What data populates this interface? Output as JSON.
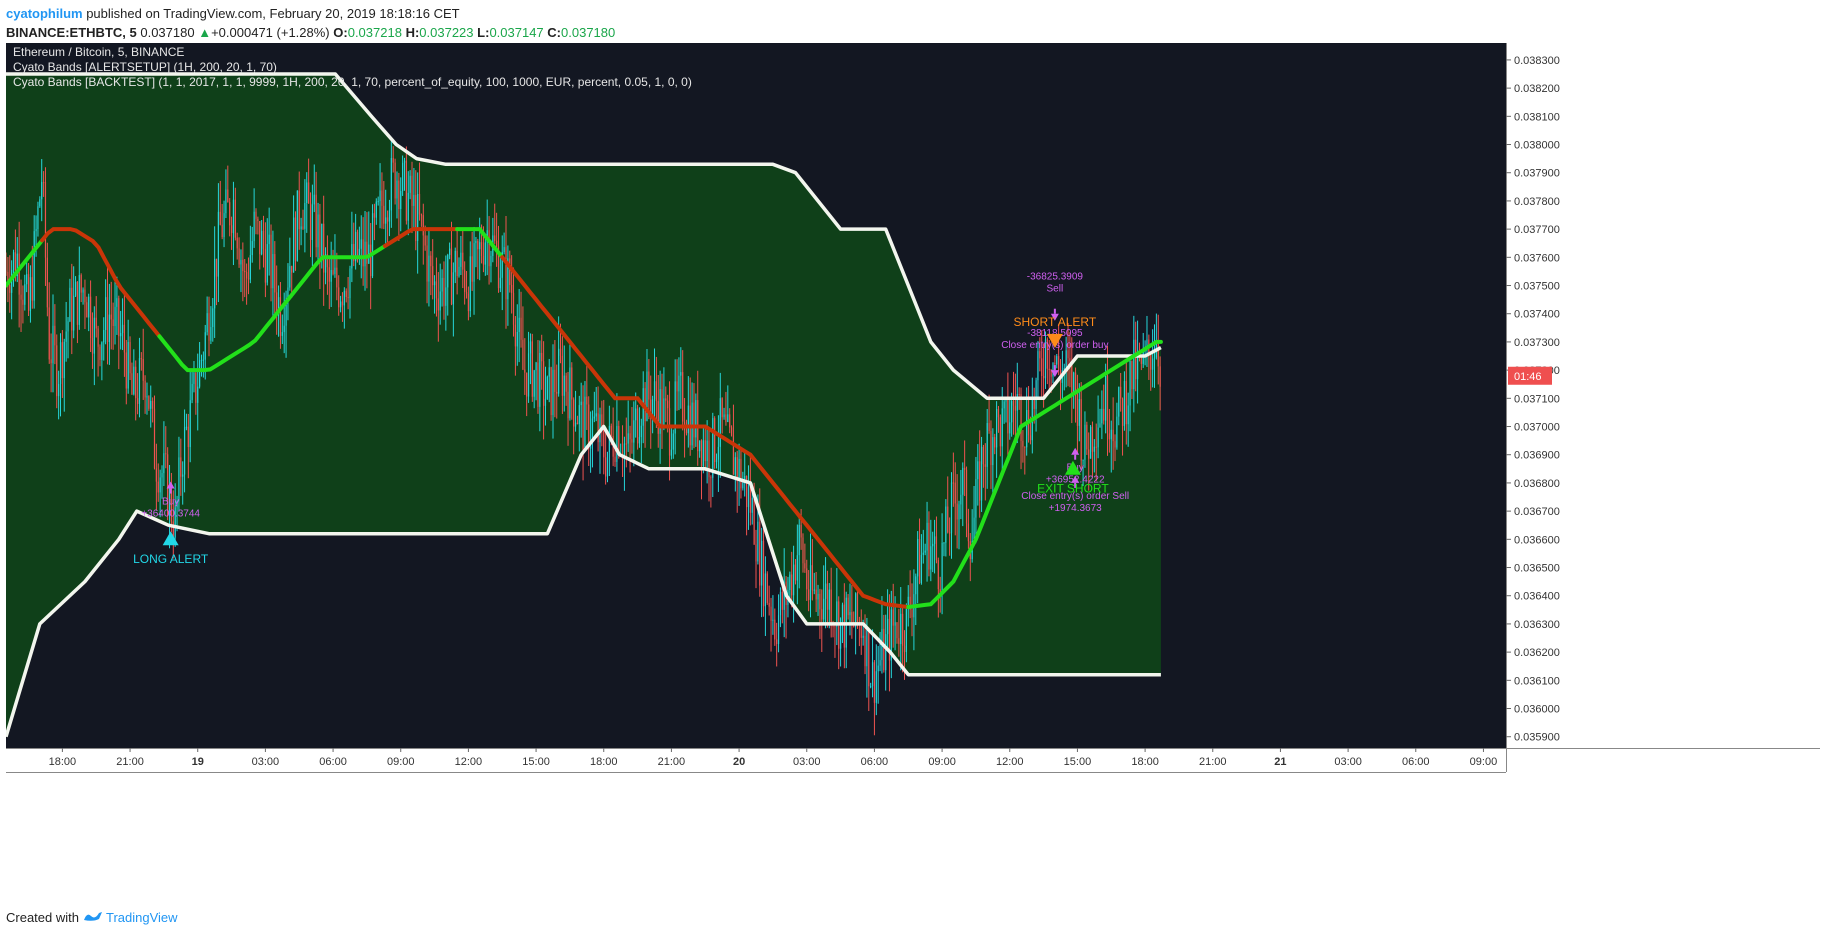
{
  "header": {
    "author": "cyatophilum",
    "published_text": "published on TradingView.com, February 20, 2019 18:18:16 CET",
    "symbol": "BINANCE:ETHBTC, 5",
    "last_price": "0.037180",
    "change_arrow": "▲",
    "change": "+0.000471 (+1.28%)",
    "ohlc": [
      {
        "label": "O:",
        "value": "0.037218"
      },
      {
        "label": "H:",
        "value": "0.037223"
      },
      {
        "label": "L:",
        "value": "0.037147"
      },
      {
        "label": "C:",
        "value": "0.037180"
      }
    ]
  },
  "footer": {
    "created_with": "Created with",
    "brand": "TradingView"
  },
  "colors": {
    "background": "#131722",
    "band_fill": "#0f4019",
    "band_line": "#f3f6ee",
    "candle_up": "#26d6da",
    "candle_down": "#ef5350",
    "ma_up": "#22e01a",
    "ma_down": "#c93508",
    "price_tag": "#ef4f4f",
    "long_label": "#22d8e8",
    "short_label": "#ff8c1a",
    "exit_label": "#22e01a",
    "order_label": "#d060f0"
  },
  "chart_data": {
    "type": "candlestick",
    "legend": [
      "Ethereum / Bitcoin, 5, BINANCE",
      "Cyato Bands [ALERTSETUP] (1H, 200, 20, 1, 70)",
      "Cyato Bands [BACKTEST] (1, 1, 2017, 1, 1, 9999, 1H, 200, 20, 1, 70, percent_of_equity, 100, 1000, EUR, percent, 0.05, 1, 0, 0)"
    ],
    "x_hours_start": 0,
    "x_hours_end": 43.8,
    "ylim": [
      0.03586,
      0.03836
    ],
    "y_ticks": [
      "0.035900",
      "0.036000",
      "0.036100",
      "0.036200",
      "0.036300",
      "0.036400",
      "0.036500",
      "0.036600",
      "0.036700",
      "0.036800",
      "0.036900",
      "0.037000",
      "0.037100",
      "0.037200",
      "0.037300",
      "0.037400",
      "0.037500",
      "0.037600",
      "0.037700",
      "0.037800",
      "0.037900",
      "0.038000",
      "0.038100",
      "0.038200",
      "0.038300"
    ],
    "x_ticks": [
      {
        "h": 2.5,
        "label": "18:00",
        "bold": false
      },
      {
        "h": 5.5,
        "label": "21:00",
        "bold": false
      },
      {
        "h": 8.5,
        "label": "19",
        "bold": true
      },
      {
        "h": 11.5,
        "label": "03:00",
        "bold": false
      },
      {
        "h": 14.5,
        "label": "06:00",
        "bold": false
      },
      {
        "h": 17.5,
        "label": "09:00",
        "bold": false
      },
      {
        "h": 20.5,
        "label": "12:00",
        "bold": false
      },
      {
        "h": 23.5,
        "label": "15:00",
        "bold": false
      },
      {
        "h": 26.5,
        "label": "18:00",
        "bold": false
      },
      {
        "h": 29.5,
        "label": "21:00",
        "bold": false
      },
      {
        "h": 32.5,
        "label": "20",
        "bold": true
      },
      {
        "h": 35.5,
        "label": "03:00",
        "bold": false
      },
      {
        "h": 38.5,
        "label": "06:00",
        "bold": false
      },
      {
        "h": 41.5,
        "label": "09:00",
        "bold": false
      },
      {
        "h": 44.5,
        "label": "12:00",
        "bold": false
      },
      {
        "h": 47.5,
        "label": "15:00",
        "bold": false
      },
      {
        "h": 50.5,
        "label": "18:00",
        "bold": false
      },
      {
        "h": 53.5,
        "label": "21:00",
        "bold": false
      },
      {
        "h": 56.5,
        "label": "21",
        "bold": true
      },
      {
        "h": 59.5,
        "label": "03:00",
        "bold": false
      },
      {
        "h": 62.5,
        "label": "06:00",
        "bold": false
      },
      {
        "h": 65.5,
        "label": "09:00",
        "bold": false
      }
    ],
    "x_view": [
      0,
      66.5
    ],
    "price_path": [
      [
        0,
        0.03755
      ],
      [
        0.5,
        0.0376
      ],
      [
        1.0,
        0.0374
      ],
      [
        1.6,
        0.0379
      ],
      [
        1.9,
        0.0373
      ],
      [
        2.3,
        0.0372
      ],
      [
        2.8,
        0.0374
      ],
      [
        3.5,
        0.0375
      ],
      [
        4.0,
        0.0373
      ],
      [
        4.6,
        0.0374
      ],
      [
        5.2,
        0.0373
      ],
      [
        5.6,
        0.0371
      ],
      [
        6.2,
        0.0372
      ],
      [
        6.6,
        0.0369
      ],
      [
        7.1,
        0.0368
      ],
      [
        7.5,
        0.03665
      ],
      [
        7.8,
        0.0369
      ],
      [
        8.2,
        0.03705
      ],
      [
        8.8,
        0.0373
      ],
      [
        9.5,
        0.0377
      ],
      [
        10.1,
        0.0378
      ],
      [
        10.6,
        0.0375
      ],
      [
        11.0,
        0.0377
      ],
      [
        11.6,
        0.0376
      ],
      [
        12.2,
        0.0374
      ],
      [
        12.6,
        0.0376
      ],
      [
        13.1,
        0.0378
      ],
      [
        13.8,
        0.0377
      ],
      [
        14.3,
        0.0375
      ],
      [
        14.9,
        0.0375
      ],
      [
        15.5,
        0.0376
      ],
      [
        16.1,
        0.0376
      ],
      [
        16.7,
        0.0378
      ],
      [
        17.3,
        0.0379
      ],
      [
        17.9,
        0.0378
      ],
      [
        18.4,
        0.0377
      ],
      [
        18.9,
        0.0375
      ],
      [
        19.5,
        0.0375
      ],
      [
        20.0,
        0.03758
      ],
      [
        20.6,
        0.0375
      ],
      [
        21.3,
        0.0377
      ],
      [
        21.8,
        0.0376
      ],
      [
        22.4,
        0.0375
      ],
      [
        22.9,
        0.0372
      ],
      [
        23.4,
        0.0372
      ],
      [
        24.0,
        0.0371
      ],
      [
        24.6,
        0.0372
      ],
      [
        25.1,
        0.0371
      ],
      [
        25.6,
        0.037
      ],
      [
        26.1,
        0.037
      ],
      [
        26.6,
        0.0369
      ],
      [
        27.1,
        0.037
      ],
      [
        27.6,
        0.0369
      ],
      [
        28.2,
        0.0371
      ],
      [
        28.8,
        0.0371
      ],
      [
        29.4,
        0.037
      ],
      [
        29.9,
        0.0371
      ],
      [
        30.6,
        0.037
      ],
      [
        31.2,
        0.0369
      ],
      [
        31.7,
        0.037
      ],
      [
        32.2,
        0.0369
      ],
      [
        32.7,
        0.0368
      ],
      [
        33.1,
        0.0367
      ],
      [
        33.5,
        0.0365
      ],
      [
        33.8,
        0.0364
      ],
      [
        34.1,
        0.0363
      ],
      [
        34.6,
        0.0364
      ],
      [
        35.2,
        0.0366
      ],
      [
        35.6,
        0.0364
      ],
      [
        36.1,
        0.0364
      ],
      [
        36.5,
        0.0364
      ],
      [
        37.0,
        0.0363
      ],
      [
        37.5,
        0.0363
      ],
      [
        38.0,
        0.0363
      ],
      [
        38.4,
        0.0361
      ],
      [
        38.9,
        0.0362
      ],
      [
        39.4,
        0.0363
      ],
      [
        39.9,
        0.0363
      ],
      [
        40.4,
        0.0365
      ],
      [
        40.9,
        0.0366
      ],
      [
        41.4,
        0.0365
      ],
      [
        41.9,
        0.0367
      ],
      [
        42.4,
        0.0368
      ],
      [
        42.8,
        0.0366
      ],
      [
        43.3,
        0.0369
      ],
      [
        43.8,
        0.037
      ],
      [
        44.3,
        0.037
      ],
      [
        44.8,
        0.0371
      ],
      [
        45.2,
        0.037
      ],
      [
        45.6,
        0.0371
      ],
      [
        46.1,
        0.0373
      ],
      [
        46.6,
        0.0372
      ],
      [
        47.0,
        0.0372
      ],
      [
        47.5,
        0.0371
      ],
      [
        47.8,
        0.0369
      ],
      [
        48.2,
        0.037
      ],
      [
        48.7,
        0.0371
      ],
      [
        49.2,
        0.037
      ],
      [
        49.6,
        0.0371
      ],
      [
        50.0,
        0.0372
      ],
      [
        50.4,
        0.0372
      ],
      [
        50.8,
        0.03728
      ],
      [
        51.0,
        0.03733
      ],
      [
        51.2,
        0.0372
      ]
    ],
    "bands": {
      "upper": [
        [
          0,
          0.03825
        ],
        [
          14.6,
          0.03825
        ],
        [
          16.2,
          0.0381
        ],
        [
          17.3,
          0.038
        ],
        [
          18.2,
          0.03795
        ],
        [
          19.5,
          0.03793
        ],
        [
          22,
          0.03793
        ],
        [
          34,
          0.03793
        ],
        [
          35,
          0.0379
        ],
        [
          36,
          0.0378
        ],
        [
          37,
          0.0377
        ],
        [
          39,
          0.0377
        ],
        [
          40,
          0.0375
        ],
        [
          41,
          0.0373
        ],
        [
          42,
          0.0372
        ],
        [
          43.5,
          0.0371
        ],
        [
          46.0,
          0.0371
        ],
        [
          47.5,
          0.03725
        ],
        [
          49,
          0.03725
        ],
        [
          50.5,
          0.03725
        ],
        [
          51.2,
          0.03728
        ]
      ],
      "lower": [
        [
          0,
          0.0359
        ],
        [
          1.5,
          0.0363
        ],
        [
          3.5,
          0.03645
        ],
        [
          5.0,
          0.0366
        ],
        [
          5.8,
          0.0367
        ],
        [
          7.2,
          0.03665
        ],
        [
          9.0,
          0.03662
        ],
        [
          24.0,
          0.03662
        ],
        [
          25.5,
          0.0369
        ],
        [
          26.5,
          0.037
        ],
        [
          27.2,
          0.0369
        ],
        [
          28.5,
          0.03685
        ],
        [
          31,
          0.03685
        ],
        [
          33,
          0.0368
        ],
        [
          33.8,
          0.0366
        ],
        [
          34.6,
          0.0364
        ],
        [
          35.5,
          0.0363
        ],
        [
          38,
          0.0363
        ],
        [
          39.2,
          0.0362
        ],
        [
          40,
          0.03612
        ],
        [
          51.2,
          0.03612
        ]
      ]
    },
    "ma": [
      [
        0,
        0.0375
      ],
      [
        1,
        0.0376
      ],
      [
        2,
        0.0377
      ],
      [
        3,
        0.0377
      ],
      [
        4,
        0.03765
      ],
      [
        5,
        0.0375
      ],
      [
        6,
        0.0374
      ],
      [
        7,
        0.0373
      ],
      [
        8,
        0.0372
      ],
      [
        9,
        0.0372
      ],
      [
        10,
        0.03725
      ],
      [
        11,
        0.0373
      ],
      [
        12,
        0.0374
      ],
      [
        13,
        0.0375
      ],
      [
        14,
        0.0376
      ],
      [
        15,
        0.0376
      ],
      [
        16,
        0.0376
      ],
      [
        17,
        0.03765
      ],
      [
        18,
        0.0377
      ],
      [
        19,
        0.0377
      ],
      [
        20,
        0.0377
      ],
      [
        21,
        0.0377
      ],
      [
        22,
        0.0376
      ],
      [
        23,
        0.0375
      ],
      [
        24,
        0.0374
      ],
      [
        25,
        0.0373
      ],
      [
        26,
        0.0372
      ],
      [
        27,
        0.0371
      ],
      [
        28,
        0.0371
      ],
      [
        29,
        0.037
      ],
      [
        30,
        0.037
      ],
      [
        31,
        0.037
      ],
      [
        32,
        0.03695
      ],
      [
        33,
        0.0369
      ],
      [
        34,
        0.0368
      ],
      [
        35,
        0.0367
      ],
      [
        36,
        0.0366
      ],
      [
        37,
        0.0365
      ],
      [
        38,
        0.0364
      ],
      [
        39,
        0.03637
      ],
      [
        40,
        0.03636
      ],
      [
        41,
        0.03637
      ],
      [
        42,
        0.03645
      ],
      [
        43,
        0.0366
      ],
      [
        44,
        0.0368
      ],
      [
        45,
        0.037
      ],
      [
        46,
        0.03705
      ],
      [
        47,
        0.0371
      ],
      [
        48,
        0.03715
      ],
      [
        49,
        0.0372
      ],
      [
        50,
        0.03725
      ],
      [
        51,
        0.0373
      ],
      [
        51.2,
        0.0373
      ]
    ],
    "ma_colors": [
      {
        "from": 0,
        "to": 1.6,
        "trend": "up"
      },
      {
        "from": 1.6,
        "to": 6.8,
        "trend": "down"
      },
      {
        "from": 6.8,
        "to": 16.8,
        "trend": "up"
      },
      {
        "from": 16.8,
        "to": 20.0,
        "trend": "down"
      },
      {
        "from": 20.0,
        "to": 22.0,
        "trend": "up"
      },
      {
        "from": 22.0,
        "to": 40.0,
        "trend": "down"
      },
      {
        "from": 40.0,
        "to": 51.2,
        "trend": "up"
      }
    ],
    "price_label": {
      "value": 0.03718,
      "text": "01:46"
    },
    "markers": [
      {
        "h": 7.3,
        "price": 0.03665,
        "direction": "up",
        "label": "LONG ALERT",
        "color_key": "long_label"
      },
      {
        "h": 46.5,
        "price": 0.0373,
        "direction": "down",
        "label": "SHORT ALERT",
        "color_key": "short_label"
      },
      {
        "h": 47.3,
        "price": 0.0369,
        "direction": "up",
        "label": "EXIT SHORT",
        "color_key": "exit_label"
      }
    ],
    "orders": [
      {
        "h": 7.3,
        "price": 0.03678,
        "direction": "up",
        "texts": [
          "Buy",
          "+36400.3744"
        ]
      },
      {
        "h": 46.5,
        "price": 0.0374,
        "direction": "down",
        "texts": [
          "-36825.3909",
          "Sell"
        ]
      },
      {
        "h": 46.5,
        "price": 0.0372,
        "direction": "down",
        "texts": [
          "-38118.5095",
          "Close entry(s) order buy"
        ]
      },
      {
        "h": 47.4,
        "price": 0.0369,
        "direction": "up",
        "texts": [
          "Buy",
          "+36952.4222"
        ]
      },
      {
        "h": 47.4,
        "price": 0.0368,
        "direction": "up",
        "texts": [
          "Close entry(s) order Sell",
          "+1974.3673"
        ]
      }
    ]
  }
}
